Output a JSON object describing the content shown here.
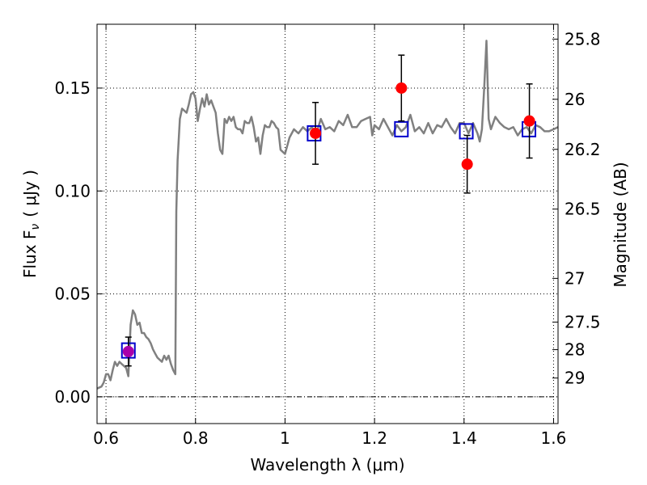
{
  "chart_data": {
    "type": "scatter",
    "xlabel": "Wavelength  λ (μm)",
    "ylabel": "Flux  F",
    "ylabel_subscript": "ν",
    "ylabel_unit": "( μJy )",
    "y2label": "Magnitude (AB)",
    "xlim": [
      0.58,
      1.61
    ],
    "ylim": [
      -0.013,
      0.181
    ],
    "grid": true,
    "grid_style": "dotted",
    "zero_line": 0.0,
    "x_ticks": [
      {
        "value": 0.6,
        "label": "0.6"
      },
      {
        "value": 0.8,
        "label": "0.8"
      },
      {
        "value": 1.0,
        "label": "1"
      },
      {
        "value": 1.2,
        "label": "1.2"
      },
      {
        "value": 1.4,
        "label": "1.4"
      },
      {
        "value": 1.6,
        "label": "1.6"
      }
    ],
    "y_ticks": [
      {
        "value": 0.0,
        "label": "0.00"
      },
      {
        "value": 0.05,
        "label": "0.05"
      },
      {
        "value": 0.1,
        "label": "0.10"
      },
      {
        "value": 0.15,
        "label": "0.15"
      }
    ],
    "y2_ticks": [
      {
        "mag": 25.8,
        "label": "25.8"
      },
      {
        "mag": 26.0,
        "label": "26"
      },
      {
        "mag": 26.2,
        "label": "26.2"
      },
      {
        "mag": 26.5,
        "label": "26.5"
      },
      {
        "mag": 27.0,
        "label": "27"
      },
      {
        "mag": 27.5,
        "label": "27.5"
      },
      {
        "mag": 28.0,
        "label": "28"
      },
      {
        "mag": 29.0,
        "label": "29"
      }
    ],
    "magnitude_zero_point_ujy": 0.00363,
    "series": [
      {
        "style": "line",
        "color": "#808080",
        "x": [
          0.58,
          0.59,
          0.595,
          0.6,
          0.605,
          0.61,
          0.615,
          0.62,
          0.625,
          0.63,
          0.635,
          0.64,
          0.645,
          0.65,
          0.655,
          0.66,
          0.665,
          0.67,
          0.675,
          0.68,
          0.685,
          0.69,
          0.695,
          0.7,
          0.705,
          0.71,
          0.715,
          0.72,
          0.725,
          0.73,
          0.735,
          0.74,
          0.745,
          0.75,
          0.755,
          0.757,
          0.76,
          0.765,
          0.77,
          0.775,
          0.78,
          0.785,
          0.79,
          0.795,
          0.8,
          0.805,
          0.81,
          0.815,
          0.82,
          0.825,
          0.83,
          0.835,
          0.84,
          0.845,
          0.85,
          0.855,
          0.86,
          0.865,
          0.87,
          0.875,
          0.88,
          0.885,
          0.89,
          0.895,
          0.9,
          0.905,
          0.91,
          0.915,
          0.92,
          0.925,
          0.93,
          0.935,
          0.94,
          0.945,
          0.95,
          0.955,
          0.96,
          0.965,
          0.97,
          0.975,
          0.98,
          0.985,
          0.99,
          1.0,
          1.01,
          1.02,
          1.03,
          1.04,
          1.05,
          1.06,
          1.07,
          1.08,
          1.09,
          1.1,
          1.11,
          1.12,
          1.13,
          1.14,
          1.15,
          1.16,
          1.17,
          1.18,
          1.19,
          1.195,
          1.2,
          1.21,
          1.22,
          1.23,
          1.24,
          1.25,
          1.26,
          1.27,
          1.28,
          1.29,
          1.3,
          1.31,
          1.32,
          1.33,
          1.34,
          1.35,
          1.36,
          1.37,
          1.38,
          1.39,
          1.4,
          1.41,
          1.42,
          1.43,
          1.435,
          1.44,
          1.445,
          1.45,
          1.455,
          1.46,
          1.47,
          1.48,
          1.49,
          1.5,
          1.51,
          1.52,
          1.53,
          1.54,
          1.55,
          1.56,
          1.57,
          1.58,
          1.59,
          1.6,
          1.61
        ],
        "y": [
          0.004,
          0.005,
          0.007,
          0.011,
          0.011,
          0.008,
          0.013,
          0.017,
          0.015,
          0.017,
          0.016,
          0.015,
          0.014,
          0.01,
          0.035,
          0.042,
          0.04,
          0.035,
          0.036,
          0.031,
          0.031,
          0.029,
          0.028,
          0.026,
          0.023,
          0.021,
          0.019,
          0.018,
          0.017,
          0.02,
          0.018,
          0.02,
          0.016,
          0.013,
          0.011,
          0.09,
          0.115,
          0.135,
          0.14,
          0.139,
          0.138,
          0.142,
          0.147,
          0.148,
          0.145,
          0.134,
          0.14,
          0.145,
          0.141,
          0.147,
          0.142,
          0.144,
          0.141,
          0.138,
          0.128,
          0.12,
          0.118,
          0.135,
          0.133,
          0.136,
          0.134,
          0.136,
          0.131,
          0.13,
          0.13,
          0.128,
          0.134,
          0.133,
          0.133,
          0.136,
          0.131,
          0.124,
          0.126,
          0.118,
          0.127,
          0.132,
          0.131,
          0.131,
          0.134,
          0.133,
          0.131,
          0.13,
          0.12,
          0.118,
          0.126,
          0.13,
          0.128,
          0.131,
          0.129,
          0.131,
          0.128,
          0.135,
          0.13,
          0.131,
          0.129,
          0.134,
          0.132,
          0.137,
          0.131,
          0.131,
          0.134,
          0.135,
          0.136,
          0.127,
          0.132,
          0.13,
          0.135,
          0.131,
          0.127,
          0.132,
          0.129,
          0.131,
          0.137,
          0.129,
          0.131,
          0.128,
          0.133,
          0.128,
          0.132,
          0.131,
          0.135,
          0.131,
          0.128,
          0.133,
          0.133,
          0.128,
          0.133,
          0.128,
          0.124,
          0.13,
          0.15,
          0.173,
          0.135,
          0.13,
          0.136,
          0.133,
          0.131,
          0.13,
          0.131,
          0.127,
          0.13,
          0.131,
          0.128,
          0.132,
          0.131,
          0.129,
          0.129,
          0.13,
          0.131
        ]
      },
      {
        "style": "open-square",
        "color": "#0000cc",
        "x": [
          0.65,
          1.065,
          1.26,
          1.405,
          1.545
        ],
        "y": [
          0.0225,
          0.128,
          0.13,
          0.129,
          0.13
        ]
      },
      {
        "style": "filled-circle-errorbar",
        "color": "#ff0000",
        "color_first": "#aa00aa",
        "x": [
          0.65,
          1.068,
          1.26,
          1.407,
          1.546
        ],
        "y": [
          0.022,
          0.128,
          0.15,
          0.113,
          0.134
        ],
        "yerr": [
          0.007,
          0.015,
          0.016,
          0.014,
          0.018
        ]
      }
    ]
  }
}
